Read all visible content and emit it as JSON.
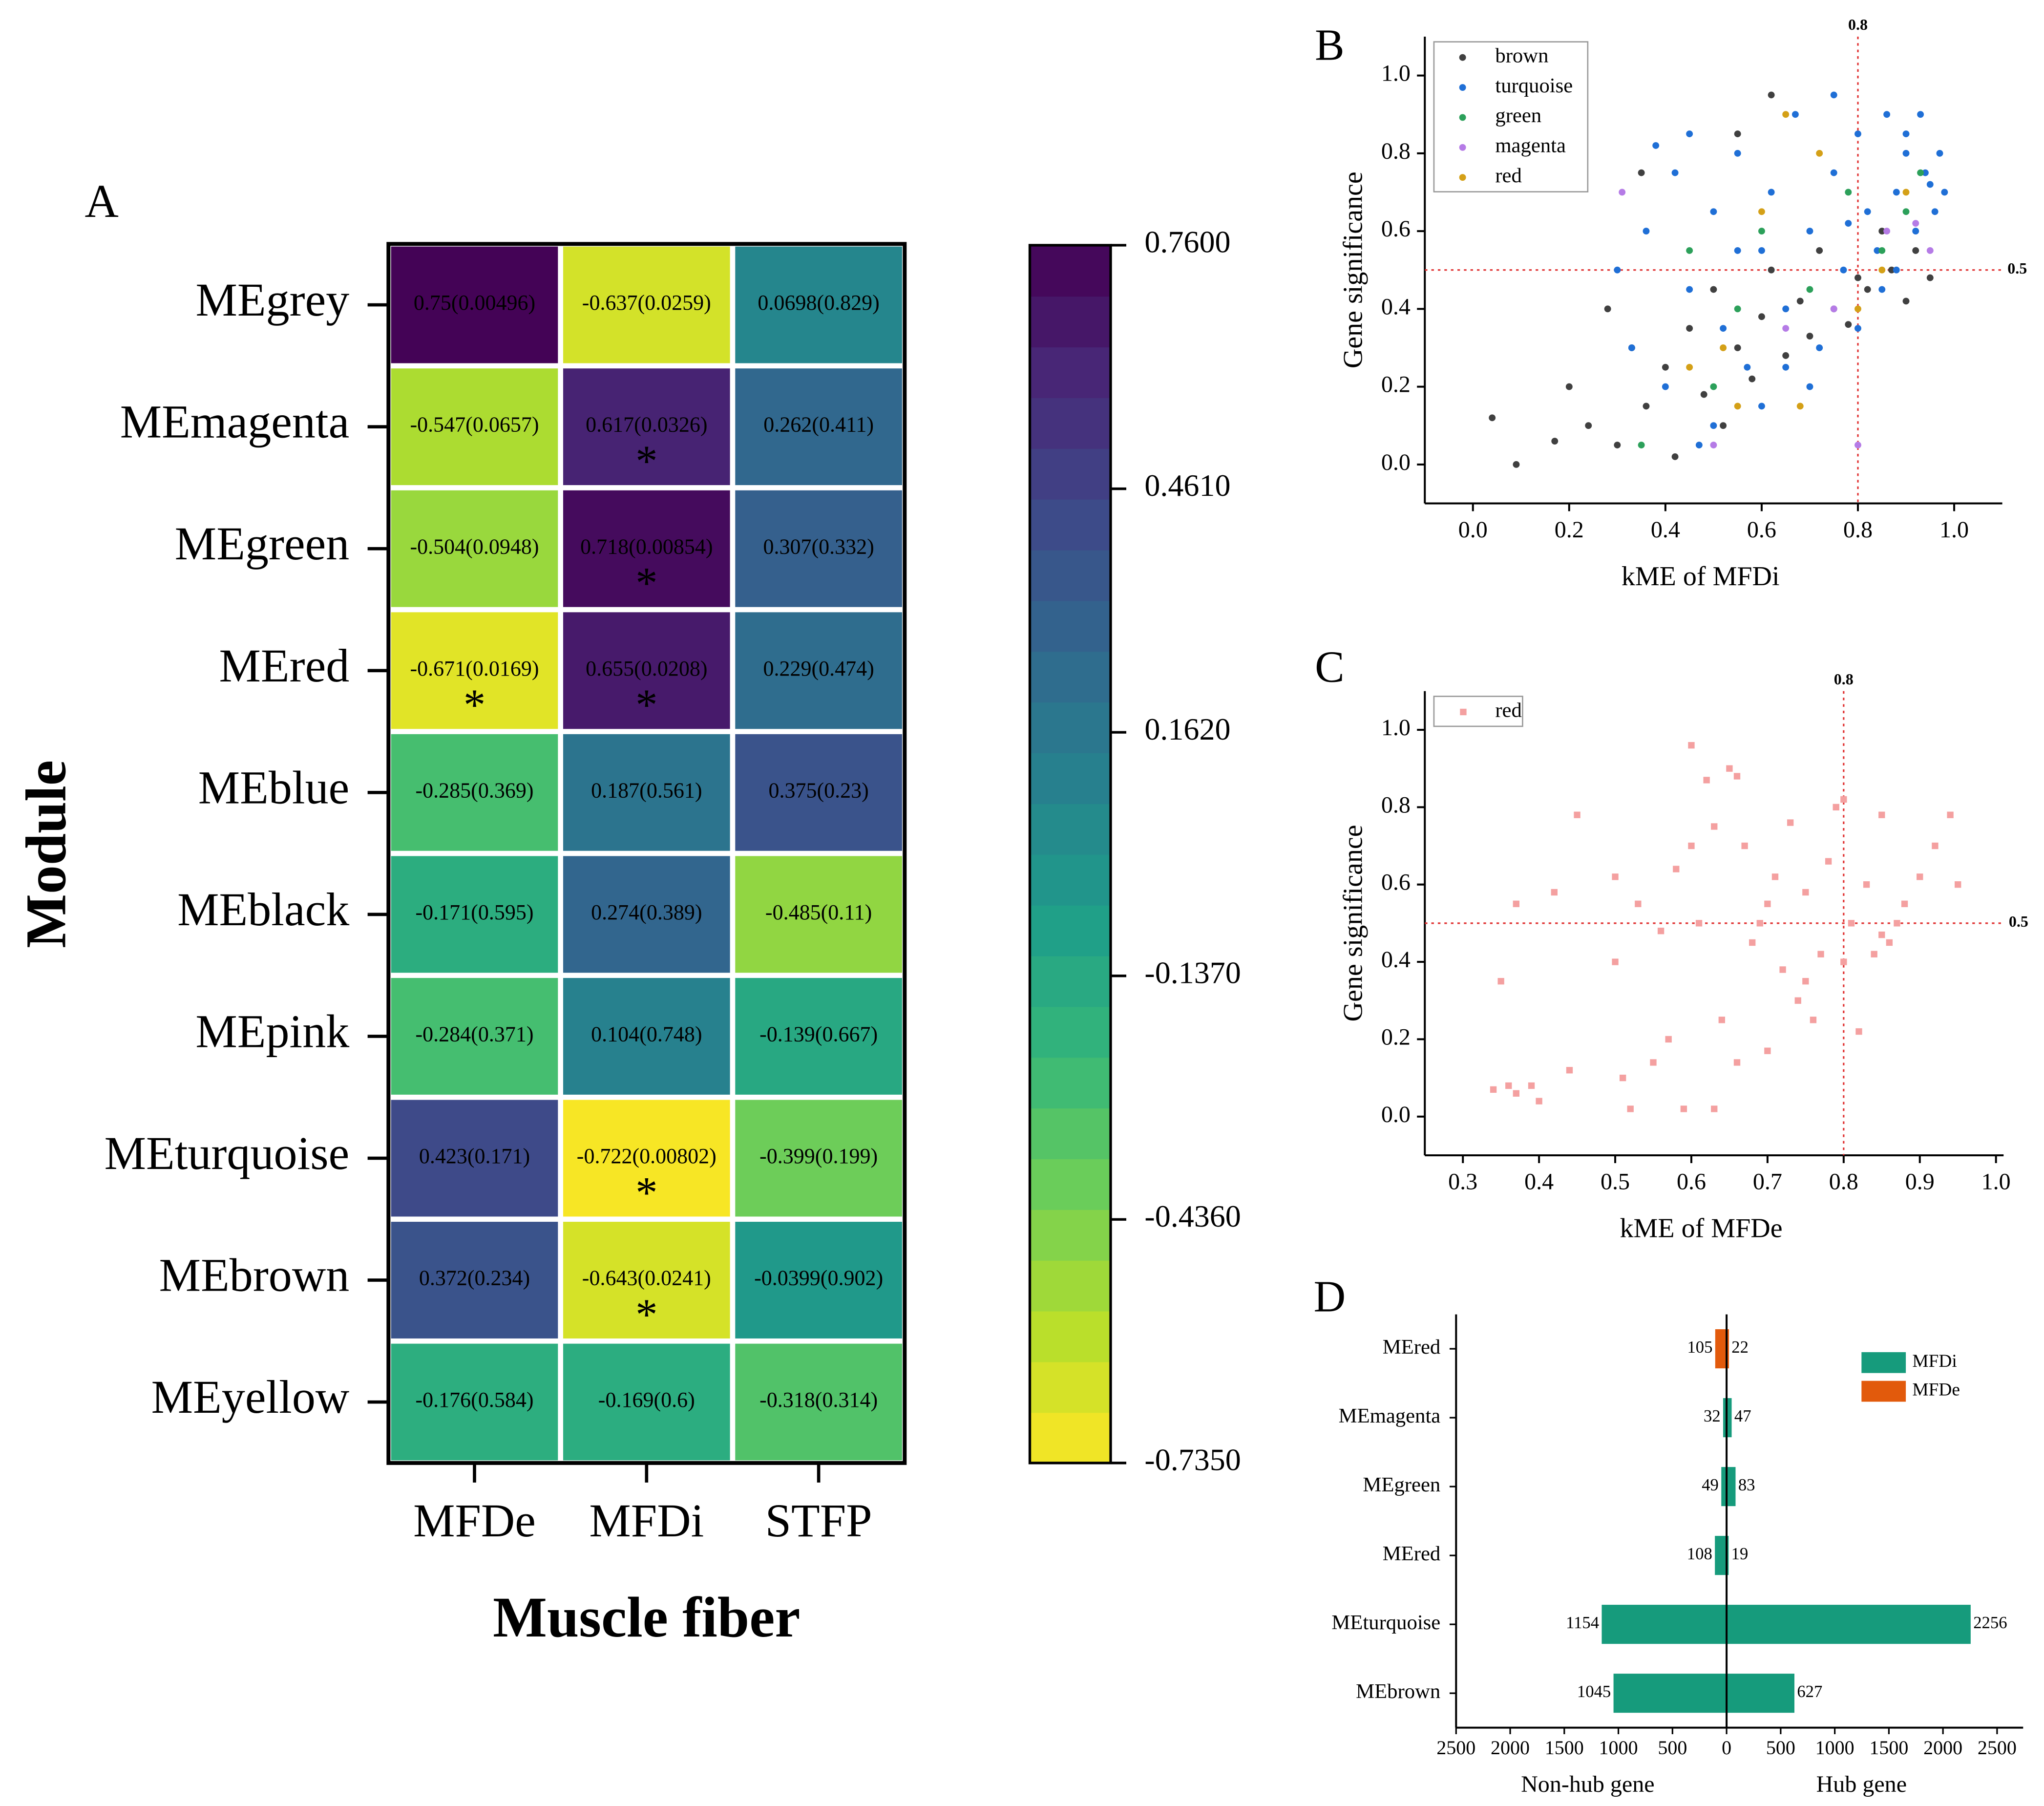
{
  "chart_data": [
    {
      "type": "heatmap",
      "panel": "A",
      "rows": [
        "MEgrey",
        "MEmagenta",
        "MEgreen",
        "MEred",
        "MEblue",
        "MEblack",
        "MEpink",
        "MEturquoise",
        "MEbrown",
        "MEyellow"
      ],
      "columns": [
        "MFDe",
        "MFDi",
        "STFP"
      ],
      "values": [
        [
          0.75,
          -0.637,
          0.0698
        ],
        [
          -0.547,
          0.617,
          0.262
        ],
        [
          -0.504,
          0.718,
          0.307
        ],
        [
          -0.671,
          0.655,
          0.229
        ],
        [
          -0.285,
          0.187,
          0.375
        ],
        [
          -0.171,
          0.274,
          -0.485
        ],
        [
          -0.284,
          0.104,
          -0.139
        ],
        [
          0.423,
          -0.722,
          -0.399
        ],
        [
          0.372,
          -0.643,
          -0.0399
        ],
        [
          -0.176,
          -0.169,
          -0.318
        ]
      ],
      "value_labels": [
        [
          "0.75(0.00496)",
          "-0.637(0.0259)",
          "0.0698(0.829)"
        ],
        [
          "-0.547(0.0657)",
          "0.617(0.0326)",
          "0.262(0.411)"
        ],
        [
          "-0.504(0.0948)",
          "0.718(0.00854)",
          "0.307(0.332)"
        ],
        [
          "-0.671(0.0169)",
          "0.655(0.0208)",
          "0.229(0.474)"
        ],
        [
          "-0.285(0.369)",
          "0.187(0.561)",
          "0.375(0.23)"
        ],
        [
          "-0.171(0.595)",
          "0.274(0.389)",
          "-0.485(0.11)"
        ],
        [
          "-0.284(0.371)",
          "0.104(0.748)",
          "-0.139(0.667)"
        ],
        [
          "0.423(0.171)",
          "-0.722(0.00802)",
          "-0.399(0.199)"
        ],
        [
          "0.372(0.234)",
          "-0.643(0.0241)",
          "-0.0399(0.902)"
        ],
        [
          "-0.176(0.584)",
          "-0.169(0.6)",
          "-0.318(0.314)"
        ]
      ],
      "significant": [
        [
          false,
          false,
          false
        ],
        [
          false,
          true,
          false
        ],
        [
          false,
          true,
          false
        ],
        [
          true,
          true,
          false
        ],
        [
          false,
          false,
          false
        ],
        [
          false,
          false,
          false
        ],
        [
          false,
          false,
          false
        ],
        [
          false,
          true,
          false
        ],
        [
          false,
          true,
          false
        ],
        [
          false,
          false,
          false
        ]
      ],
      "star_label": "*",
      "xlabel": "Muscle fiber",
      "ylabel": "Module",
      "clim": [
        -0.735,
        0.76
      ],
      "cticks": [
        {
          "value": 0.76,
          "label": "0.7600"
        },
        {
          "value": 0.461,
          "label": "0.4610"
        },
        {
          "value": 0.162,
          "label": "0.1620"
        },
        {
          "value": -0.137,
          "label": "-0.1370"
        },
        {
          "value": -0.436,
          "label": "-0.4360"
        },
        {
          "value": -0.735,
          "label": "-0.7350"
        }
      ],
      "colorscale": [
        "#fde725",
        "#b5de2b",
        "#6ece58",
        "#35b779",
        "#1f9e89",
        "#26828e",
        "#31688e",
        "#3e4989",
        "#482878",
        "#440154"
      ]
    },
    {
      "type": "scatter",
      "panel": "B",
      "xlabel": "kME of  MFDi",
      "ylabel": "Gene significance",
      "xlim": [
        -0.1,
        1.1
      ],
      "ylim": [
        -0.1,
        1.1
      ],
      "xticks": [
        {
          "value": 0,
          "label": "0.0"
        },
        0.2,
        0.4,
        0.6,
        0.8,
        {
          "value": 1,
          "label": "1.0"
        }
      ],
      "yticks": [
        {
          "value": 0,
          "label": "0.0"
        },
        0.2,
        0.4,
        0.6,
        0.8,
        {
          "value": 1,
          "label": "1.0"
        }
      ],
      "vline": 0.8,
      "hline": 0.5,
      "legend": "upper left",
      "marker": "circle",
      "series": [
        {
          "name": "brown",
          "color": "#404040",
          "x": [
            0.04,
            0.09,
            0.17,
            0.2,
            0.24,
            0.28,
            0.3,
            0.33,
            0.36,
            0.4,
            0.42,
            0.45,
            0.48,
            0.5,
            0.52,
            0.55,
            0.58,
            0.6,
            0.62,
            0.65,
            0.68,
            0.7,
            0.72,
            0.75,
            0.78,
            0.8,
            0.82,
            0.85,
            0.87,
            0.9,
            0.92,
            0.95,
            0.55,
            0.62,
            0.35
          ],
          "values": [
            0.12,
            0,
            0.06,
            0.2,
            0.1,
            0.4,
            0.05,
            0.3,
            0.15,
            0.25,
            0.02,
            0.35,
            0.18,
            0.45,
            0.1,
            0.3,
            0.22,
            0.38,
            0.5,
            0.28,
            0.42,
            0.33,
            0.55,
            0.4,
            0.36,
            0.48,
            0.45,
            0.6,
            0.5,
            0.42,
            0.55,
            0.48,
            0.85,
            0.95,
            0.75
          ]
        },
        {
          "name": "turquoise",
          "color": "#1f6fd6",
          "x": [
            0.3,
            0.33,
            0.36,
            0.4,
            0.42,
            0.45,
            0.47,
            0.5,
            0.52,
            0.55,
            0.57,
            0.6,
            0.62,
            0.65,
            0.67,
            0.7,
            0.72,
            0.75,
            0.77,
            0.8,
            0.82,
            0.84,
            0.86,
            0.88,
            0.9,
            0.92,
            0.94,
            0.96,
            0.97,
            0.98,
            0.85,
            0.88,
            0.9,
            0.93,
            0.95,
            0.7,
            0.75,
            0.8,
            0.45,
            0.5,
            0.6,
            0.65,
            0.38,
            0.55,
            0.78
          ],
          "values": [
            0.5,
            0.3,
            0.6,
            0.2,
            0.75,
            0.45,
            0.05,
            0.65,
            0.35,
            0.8,
            0.25,
            0.55,
            0.7,
            0.4,
            0.9,
            0.6,
            0.3,
            0.75,
            0.5,
            0.85,
            0.65,
            0.55,
            0.9,
            0.7,
            0.8,
            0.6,
            0.75,
            0.65,
            0.8,
            0.7,
            0.45,
            0.5,
            0.85,
            0.9,
            0.72,
            0.2,
            0.95,
            0.35,
            0.85,
            0.1,
            0.15,
            0.25,
            0.82,
            0.55,
            0.62
          ]
        },
        {
          "name": "green",
          "color": "#2ca05a",
          "x": [
            0.35,
            0.45,
            0.5,
            0.6,
            0.7,
            0.78,
            0.85,
            0.9,
            0.93,
            0.55
          ],
          "values": [
            0.05,
            0.55,
            0.2,
            0.6,
            0.45,
            0.7,
            0.55,
            0.65,
            0.75,
            0.4
          ]
        },
        {
          "name": "magenta",
          "color": "#b57be6",
          "x": [
            0.31,
            0.5,
            0.65,
            0.8,
            0.86,
            0.92,
            0.95,
            0.75
          ],
          "values": [
            0.7,
            0.05,
            0.35,
            0.05,
            0.6,
            0.62,
            0.55,
            0.4
          ]
        },
        {
          "name": "red",
          "color": "#d4a017",
          "x": [
            0.45,
            0.52,
            0.6,
            0.68,
            0.72,
            0.8,
            0.85,
            0.9,
            0.55,
            0.65
          ],
          "values": [
            0.25,
            0.3,
            0.65,
            0.15,
            0.8,
            0.4,
            0.5,
            0.7,
            0.15,
            0.9
          ]
        }
      ]
    },
    {
      "type": "scatter",
      "panel": "C",
      "xlabel": "kME of  MFDe",
      "ylabel": "Gene significance",
      "xlim": [
        0.25,
        1.01
      ],
      "ylim": [
        -0.1,
        1.1
      ],
      "xticks": [
        0.3,
        0.4,
        0.5,
        0.6,
        0.7,
        0.8,
        0.9,
        {
          "value": 1,
          "label": "1.0"
        }
      ],
      "yticks": [
        {
          "value": 0,
          "label": "0.0"
        },
        0.2,
        0.4,
        0.6,
        0.8,
        {
          "value": 1,
          "label": "1.0"
        }
      ],
      "vline": 0.8,
      "hline": 0.5,
      "legend": "upper left",
      "marker": "square",
      "series": [
        {
          "name": "red",
          "color": "#f4a0a0",
          "x": [
            0.34,
            0.36,
            0.37,
            0.39,
            0.4,
            0.35,
            0.37,
            0.44,
            0.45,
            0.42,
            0.5,
            0.51,
            0.52,
            0.5,
            0.53,
            0.55,
            0.56,
            0.57,
            0.58,
            0.59,
            0.6,
            0.61,
            0.62,
            0.63,
            0.64,
            0.65,
            0.66,
            0.67,
            0.68,
            0.69,
            0.7,
            0.71,
            0.72,
            0.73,
            0.74,
            0.75,
            0.76,
            0.77,
            0.78,
            0.79,
            0.8,
            0.81,
            0.82,
            0.83,
            0.84,
            0.85,
            0.86,
            0.87,
            0.88,
            0.9,
            0.92,
            0.94,
            0.95,
            0.6,
            0.63,
            0.66,
            0.7,
            0.75,
            0.8,
            0.85
          ],
          "values": [
            0.07,
            0.08,
            0.55,
            0.08,
            0.04,
            0.35,
            0.06,
            0.12,
            0.78,
            0.58,
            0.62,
            0.1,
            0.02,
            0.4,
            0.55,
            0.14,
            0.48,
            0.2,
            0.64,
            0.02,
            0.96,
            0.5,
            0.87,
            0.02,
            0.25,
            0.9,
            0.14,
            0.7,
            0.45,
            0.5,
            0.17,
            0.62,
            0.38,
            0.76,
            0.3,
            0.58,
            0.25,
            0.42,
            0.66,
            0.8,
            0.82,
            0.5,
            0.22,
            0.6,
            0.42,
            0.78,
            0.45,
            0.5,
            0.55,
            0.62,
            0.7,
            0.78,
            0.6,
            0.7,
            0.75,
            0.88,
            0.55,
            0.35,
            0.4,
            0.47
          ]
        }
      ]
    },
    {
      "type": "diverging-bar",
      "panel": "D",
      "categories": [
        "MEred",
        "MEmagenta",
        "MEgreen",
        "MEred",
        "MEturquoise",
        "MEbrown"
      ],
      "series": [
        {
          "name": "MFDi",
          "color": "#169b7c",
          "values": [
            null,
            47,
            83,
            19,
            2256,
            627
          ],
          "nonhub": [
            null,
            32,
            49,
            108,
            1154,
            1045
          ]
        },
        {
          "name": "MFDe",
          "color": "#e25a0c",
          "values": [
            22,
            null,
            null,
            null,
            null,
            null
          ],
          "nonhub": [
            105,
            null,
            null,
            null,
            null,
            null
          ]
        }
      ],
      "xlim": [
        -2500,
        2500
      ],
      "xticks": [
        {
          "value": -2500,
          "label": "2500"
        },
        {
          "value": -2000,
          "label": "2000"
        },
        {
          "value": -1500,
          "label": "1500"
        },
        {
          "value": -1000,
          "label": "1000"
        },
        {
          "value": -500,
          "label": "500"
        },
        0,
        500,
        1000,
        1500,
        2000,
        2500
      ],
      "xlabel_left": "Non-hub gene",
      "xlabel_right": "Hub gene",
      "legend": "upper right"
    }
  ]
}
